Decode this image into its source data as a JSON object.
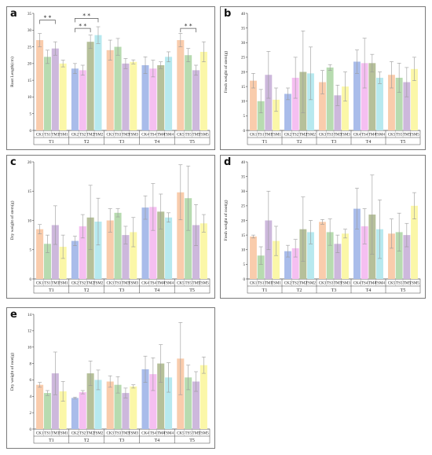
{
  "figure": {
    "colors": {
      "CK": "#f9ccac",
      "TS": "#b7dbb0",
      "TM": "#cdb8dc",
      "TSM": "#fbf7a8",
      "CK2": "#a9bcea",
      "TS2": "#f5bff1",
      "TM2": "#b6c09a",
      "TSM2": "#b7e9ef",
      "error": "#9a9a9a",
      "bracket": "#555555"
    }
  },
  "chart_data": [
    {
      "panel_label": "a",
      "type": "bar",
      "ylabel": "Root Length(cm)",
      "ylim": [
        0,
        35
      ],
      "yticks": [
        "0",
        "5",
        "10",
        "15",
        "20",
        "25",
        "30",
        "35"
      ],
      "groups": [
        {
          "name": "T1",
          "bars": [
            {
              "label": "CK1",
              "color": "CK",
              "value": 27.0,
              "err": 2.0
            },
            {
              "label": "TS1",
              "color": "TS",
              "value": 22.0,
              "err": 2.0
            },
            {
              "label": "TM1",
              "color": "TM",
              "value": 24.5,
              "err": 2.0
            },
            {
              "label": "TSM1",
              "color": "TSM",
              "value": 20.0,
              "err": 1.0
            }
          ]
        },
        {
          "name": "T2",
          "bars": [
            {
              "label": "CK2",
              "color": "CK2",
              "value": 18.5,
              "err": 1.5
            },
            {
              "label": "TS2",
              "color": "TS2",
              "value": 18.0,
              "err": 1.5
            },
            {
              "label": "TM2",
              "color": "TM2",
              "value": 26.5,
              "err": 2.0
            },
            {
              "label": "TSM2",
              "color": "TSM2",
              "value": 28.5,
              "err": 2.5
            }
          ]
        },
        {
          "name": "T3",
          "bars": [
            {
              "label": "CK3",
              "color": "CK",
              "value": 24.0,
              "err": 3.0
            },
            {
              "label": "TS3",
              "color": "TS",
              "value": 25.0,
              "err": 2.5
            },
            {
              "label": "TM3",
              "color": "TM",
              "value": 20.0,
              "err": 1.5
            },
            {
              "label": "TSM3",
              "color": "TSM",
              "value": 20.5,
              "err": 0.6
            }
          ]
        },
        {
          "name": "T4",
          "bars": [
            {
              "label": "CK4",
              "color": "CK2",
              "value": 19.5,
              "err": 2.5
            },
            {
              "label": "TS4",
              "color": "TS2",
              "value": 18.5,
              "err": 2.5
            },
            {
              "label": "TM4",
              "color": "TM2",
              "value": 19.5,
              "err": 1.0
            },
            {
              "label": "TSM4",
              "color": "TSM2",
              "value": 22.0,
              "err": 1.5
            }
          ]
        },
        {
          "name": "T5",
          "bars": [
            {
              "label": "CK5",
              "color": "CK",
              "value": 27.0,
              "err": 2.0
            },
            {
              "label": "TS5",
              "color": "TS",
              "value": 22.5,
              "err": 2.0
            },
            {
              "label": "TM5",
              "color": "TM",
              "value": 18.0,
              "err": 1.5
            },
            {
              "label": "TSM5",
              "color": "TSM",
              "value": 23.5,
              "err": 3.0
            }
          ]
        }
      ],
      "significance": [
        {
          "group": 0,
          "from": 0,
          "to": 2,
          "level": 33.0,
          "text": "* *"
        },
        {
          "group": 1,
          "from": 0,
          "to": 3,
          "level": 33.5,
          "text": "* *"
        },
        {
          "group": 1,
          "from": 0,
          "to": 2,
          "level": 30.5,
          "text": "* *"
        },
        {
          "group": 4,
          "from": 0,
          "to": 2,
          "level": 30.5,
          "text": "* *"
        }
      ]
    },
    {
      "panel_label": "b",
      "type": "bar",
      "ylabel": "Fresh weight of stem(g)",
      "ylim": [
        0,
        40
      ],
      "yticks": [
        "0",
        "5",
        "10",
        "15",
        "20",
        "25",
        "30",
        "35",
        "40"
      ],
      "groups": [
        {
          "name": "T1",
          "bars": [
            {
              "label": "CK1",
              "color": "CK",
              "value": 17.0,
              "err": 2.5
            },
            {
              "label": "TS1",
              "color": "TS",
              "value": 10.0,
              "err": 4.0
            },
            {
              "label": "TM1",
              "color": "TM",
              "value": 19.0,
              "err": 8.0
            },
            {
              "label": "TSM1",
              "color": "TSM",
              "value": 10.5,
              "err": 4.0
            }
          ]
        },
        {
          "name": "T2",
          "bars": [
            {
              "label": "CK2",
              "color": "CK2",
              "value": 12.5,
              "err": 2.0
            },
            {
              "label": "TS2",
              "color": "TS2",
              "value": 18.0,
              "err": 7.0
            },
            {
              "label": "TM2",
              "color": "TM2",
              "value": 20.0,
              "err": 14.0
            },
            {
              "label": "TSM2",
              "color": "TSM2",
              "value": 19.5,
              "err": 9.0
            }
          ]
        },
        {
          "name": "T3",
          "bars": [
            {
              "label": "CK3",
              "color": "CK",
              "value": 16.5,
              "err": 4.0
            },
            {
              "label": "TS3",
              "color": "TS",
              "value": 21.5,
              "err": 1.0
            },
            {
              "label": "TM3",
              "color": "TM",
              "value": 12.0,
              "err": 3.5
            },
            {
              "label": "TSM3",
              "color": "TSM",
              "value": 15.0,
              "err": 5.0
            }
          ]
        },
        {
          "name": "T4",
          "bars": [
            {
              "label": "CK4",
              "color": "CK2",
              "value": 23.5,
              "err": 4.0
            },
            {
              "label": "TS4",
              "color": "TS2",
              "value": 23.0,
              "err": 8.5
            },
            {
              "label": "TM4",
              "color": "TM2",
              "value": 23.0,
              "err": 3.0
            },
            {
              "label": "TSM4",
              "color": "TSM2",
              "value": 18.0,
              "err": 2.0
            }
          ]
        },
        {
          "name": "T5",
          "bars": [
            {
              "label": "CK5",
              "color": "CK",
              "value": 19.0,
              "err": 4.5
            },
            {
              "label": "TS5",
              "color": "TS",
              "value": 18.0,
              "err": 5.0
            },
            {
              "label": "TM5",
              "color": "TM",
              "value": 16.5,
              "err": 5.0
            },
            {
              "label": "TSM5",
              "color": "TSM",
              "value": 21.0,
              "err": 4.0
            }
          ]
        }
      ],
      "significance": []
    },
    {
      "panel_label": "c",
      "type": "bar",
      "ylabel": "Dry weight of stem(g)",
      "ylim": [
        0,
        20
      ],
      "yticks": [
        "0",
        "5",
        "10",
        "15",
        "20"
      ],
      "groups": [
        {
          "name": "T1",
          "bars": [
            {
              "label": "CK1",
              "color": "CK",
              "value": 8.5,
              "err": 0.8
            },
            {
              "label": "TS1",
              "color": "TS",
              "value": 6.0,
              "err": 1.5
            },
            {
              "label": "TM1",
              "color": "TM",
              "value": 9.2,
              "err": 3.3
            },
            {
              "label": "TSM1",
              "color": "TSM",
              "value": 5.5,
              "err": 2.0
            }
          ]
        },
        {
          "name": "T2",
          "bars": [
            {
              "label": "CK2",
              "color": "CK2",
              "value": 6.5,
              "err": 0.8
            },
            {
              "label": "TS2",
              "color": "TS2",
              "value": 9.0,
              "err": 2.0
            },
            {
              "label": "TM2",
              "color": "TM2",
              "value": 10.5,
              "err": 5.5
            },
            {
              "label": "TSM2",
              "color": "TSM2",
              "value": 9.8,
              "err": 4.0
            }
          ]
        },
        {
          "name": "T3",
          "bars": [
            {
              "label": "CK3",
              "color": "CK",
              "value": 10.0,
              "err": 2.0
            },
            {
              "label": "TS3",
              "color": "TS",
              "value": 11.3,
              "err": 0.7
            },
            {
              "label": "TM3",
              "color": "TM",
              "value": 7.5,
              "err": 1.5
            },
            {
              "label": "TSM3",
              "color": "TSM",
              "value": 8.0,
              "err": 2.5
            }
          ]
        },
        {
          "name": "T4",
          "bars": [
            {
              "label": "CK4",
              "color": "CK2",
              "value": 12.2,
              "err": 2.0
            },
            {
              "label": "TS4",
              "color": "TS2",
              "value": 12.3,
              "err": 4.0
            },
            {
              "label": "TM4",
              "color": "TM2",
              "value": 11.5,
              "err": 3.0
            },
            {
              "label": "TSM4",
              "color": "TSM2",
              "value": 10.5,
              "err": 0.8
            }
          ]
        },
        {
          "name": "T5",
          "bars": [
            {
              "label": "CK5",
              "color": "CK",
              "value": 14.8,
              "err": 4.7
            },
            {
              "label": "TS5",
              "color": "TS",
              "value": 13.8,
              "err": 5.5
            },
            {
              "label": "TM5",
              "color": "TM",
              "value": 9.2,
              "err": 3.5
            },
            {
              "label": "TSM5",
              "color": "TSM",
              "value": 9.5,
              "err": 1.5
            }
          ]
        }
      ],
      "significance": []
    },
    {
      "panel_label": "d",
      "type": "bar",
      "ylabel": "Fresh weight of root(g)",
      "ylim": [
        0,
        40
      ],
      "yticks": [
        "0",
        "5",
        "10",
        "15",
        "20",
        "25",
        "30",
        "35",
        "40"
      ],
      "groups": [
        {
          "name": "T1",
          "bars": [
            {
              "label": "CK1",
              "color": "CK",
              "value": 14.5,
              "err": 0.5
            },
            {
              "label": "TS1",
              "color": "TS",
              "value": 8.0,
              "err": 3.0
            },
            {
              "label": "TM1",
              "color": "TM",
              "value": 20.0,
              "err": 10.0
            },
            {
              "label": "TSM1",
              "color": "TSM",
              "value": 13.0,
              "err": 5.0
            }
          ]
        },
        {
          "name": "T2",
          "bars": [
            {
              "label": "CK2",
              "color": "CK2",
              "value": 9.5,
              "err": 2.0
            },
            {
              "label": "TS2",
              "color": "TS2",
              "value": 10.5,
              "err": 3.0
            },
            {
              "label": "TM2",
              "color": "TM2",
              "value": 17.0,
              "err": 11.0
            },
            {
              "label": "TSM2",
              "color": "TSM2",
              "value": 16.0,
              "err": 4.0
            }
          ]
        },
        {
          "name": "T3",
          "bars": [
            {
              "label": "CK3",
              "color": "CK",
              "value": 19.5,
              "err": 0.8
            },
            {
              "label": "TS3",
              "color": "TS",
              "value": 16.0,
              "err": 4.5
            },
            {
              "label": "TM3",
              "color": "TM",
              "value": 12.0,
              "err": 3.0
            },
            {
              "label": "TSM3",
              "color": "TSM",
              "value": 15.5,
              "err": 1.5
            }
          ]
        },
        {
          "name": "T4",
          "bars": [
            {
              "label": "CK4",
              "color": "CK2",
              "value": 24.0,
              "err": 7.0
            },
            {
              "label": "TS4",
              "color": "TS2",
              "value": 18.0,
              "err": 6.0
            },
            {
              "label": "TM4",
              "color": "TM2",
              "value": 22.0,
              "err": 13.5
            },
            {
              "label": "TSM4",
              "color": "TSM2",
              "value": 17.0,
              "err": 10.0
            }
          ]
        },
        {
          "name": "T5",
          "bars": [
            {
              "label": "CK5",
              "color": "CK",
              "value": 15.5,
              "err": 5.0
            },
            {
              "label": "TS5",
              "color": "TS",
              "value": 16.0,
              "err": 6.5
            },
            {
              "label": "TM5",
              "color": "TM",
              "value": 15.0,
              "err": 4.0
            },
            {
              "label": "TSM5",
              "color": "TSM",
              "value": 25.0,
              "err": 4.5
            }
          ]
        }
      ],
      "significance": []
    },
    {
      "panel_label": "e",
      "type": "bar",
      "ylabel": "Dry weight of root(g)",
      "ylim": [
        0,
        14
      ],
      "yticks": [
        "0",
        "2",
        "4",
        "6",
        "8",
        "10",
        "12",
        "14"
      ],
      "groups": [
        {
          "name": "T1",
          "bars": [
            {
              "label": "CK1",
              "color": "CK",
              "value": 5.4,
              "err": 0.3
            },
            {
              "label": "TS1",
              "color": "TS",
              "value": 4.4,
              "err": 0.3
            },
            {
              "label": "TM1",
              "color": "TM",
              "value": 6.8,
              "err": 2.6
            },
            {
              "label": "TSM1",
              "color": "TSM",
              "value": 4.6,
              "err": 1.2
            }
          ]
        },
        {
          "name": "T2",
          "bars": [
            {
              "label": "CK2",
              "color": "CK2",
              "value": 3.8,
              "err": 0.1
            },
            {
              "label": "TS2",
              "color": "TS2",
              "value": 4.5,
              "err": 0.2
            },
            {
              "label": "TM2",
              "color": "TM2",
              "value": 6.8,
              "err": 1.5
            },
            {
              "label": "TSM2",
              "color": "TSM2",
              "value": 6.0,
              "err": 1.2
            }
          ]
        },
        {
          "name": "T3",
          "bars": [
            {
              "label": "CK3",
              "color": "CK",
              "value": 5.8,
              "err": 0.7
            },
            {
              "label": "TS3",
              "color": "TS",
              "value": 5.4,
              "err": 1.0
            },
            {
              "label": "TM3",
              "color": "TM",
              "value": 4.4,
              "err": 0.6
            },
            {
              "label": "TSM3",
              "color": "TSM",
              "value": 5.2,
              "err": 0.2
            }
          ]
        },
        {
          "name": "T4",
          "bars": [
            {
              "label": "CK4",
              "color": "CK2",
              "value": 7.3,
              "err": 1.6
            },
            {
              "label": "TS4",
              "color": "TS2",
              "value": 6.7,
              "err": 2.0
            },
            {
              "label": "TM4",
              "color": "TM2",
              "value": 8.0,
              "err": 2.3
            },
            {
              "label": "TSM4",
              "color": "TSM2",
              "value": 6.3,
              "err": 1.8
            }
          ]
        },
        {
          "name": "T5",
          "bars": [
            {
              "label": "CK5",
              "color": "CK",
              "value": 8.6,
              "err": 4.4
            },
            {
              "label": "TS5",
              "color": "TS",
              "value": 6.3,
              "err": 1.5
            },
            {
              "label": "TM5",
              "color": "TM",
              "value": 5.8,
              "err": 1.2
            },
            {
              "label": "TSM5",
              "color": "TSM",
              "value": 7.8,
              "err": 1.0
            }
          ]
        }
      ],
      "significance": []
    }
  ]
}
